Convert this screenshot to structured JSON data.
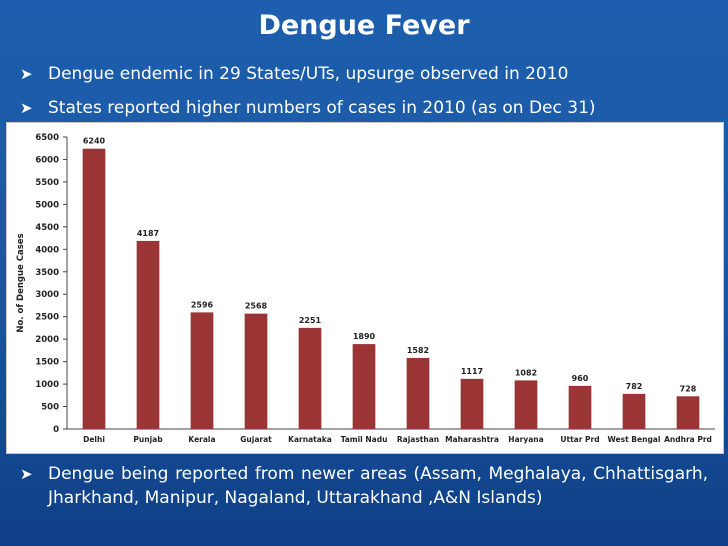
{
  "slide": {
    "title": "Dengue Fever",
    "bullets": [
      "Dengue endemic in 29 States/UTs, upsurge observed in 2010",
      "States reported higher numbers of cases in 2010 (as on Dec 31)",
      "Dengue being reported from newer areas (Assam, Meghalaya, Chhattisgarh, Jharkhand, Manipur,  Nagaland, Uttarakhand ,A&N Islands)"
    ],
    "bullet_icon": "right-arrow-icon",
    "colors": {
      "background": "#1a56a0",
      "bar": "#9b3434",
      "text": "#ffffff"
    }
  },
  "chart_data": {
    "type": "bar",
    "title": "",
    "xlabel": "",
    "ylabel": "No. of Dengue Cases",
    "ylim": [
      0,
      6500
    ],
    "yticks": [
      0,
      500,
      1000,
      1500,
      2000,
      2500,
      3000,
      3500,
      4000,
      4500,
      5000,
      5500,
      6000,
      6500
    ],
    "grid": false,
    "categories": [
      "Delhi",
      "Punjab",
      "Kerala",
      "Gujarat",
      "Karnataka",
      "Tamil Nadu",
      "Rajasthan",
      "Maharashtra",
      "Haryana",
      "Uttar Prd",
      "West Bengal",
      "Andhra Prd"
    ],
    "values": [
      6240,
      4187,
      2596,
      2568,
      2251,
      1890,
      1582,
      1117,
      1082,
      960,
      782,
      728
    ],
    "bar_color": "#9b3434"
  }
}
